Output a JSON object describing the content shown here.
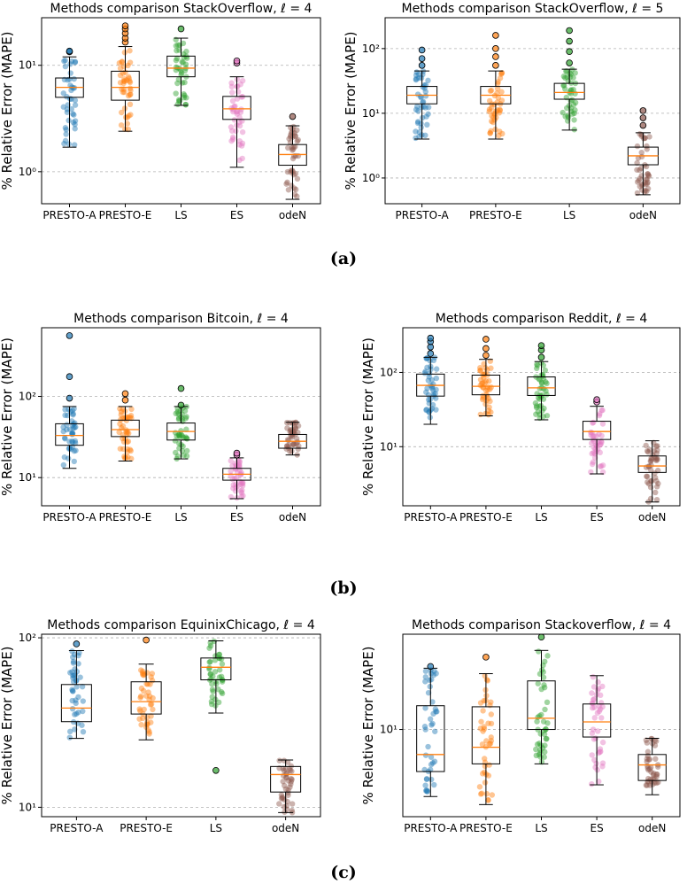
{
  "captions": [
    "(a)",
    "(b)",
    "(c)"
  ],
  "chart_data": [
    {
      "type": "box",
      "title": "Methods comparison StackOverflow, ℓ = 4",
      "ylabel": "% Relative Error (MAPE)",
      "yscale": "log",
      "ylim": [
        0.5,
        28
      ],
      "yticks": [
        {
          "v": 1,
          "label": "10⁰"
        },
        {
          "v": 10,
          "label": "10¹"
        }
      ],
      "categories": [
        "PRESTO-A",
        "PRESTO-E",
        "LS",
        "ES",
        "odeN"
      ],
      "colors": [
        "#1f77b4",
        "#ff7f0e",
        "#2ca02c",
        "#e377c2",
        "#8c564b"
      ],
      "boxes": [
        {
          "whislo": 1.7,
          "q1": 5.0,
          "med": 6.2,
          "q3": 7.6,
          "whishi": 12.0,
          "fliers": [
            13.4,
            13.6
          ]
        },
        {
          "whislo": 2.4,
          "q1": 4.7,
          "med": 6.2,
          "q3": 8.8,
          "whishi": 15.0,
          "fliers": [
            16.5,
            18.0,
            20.0,
            22.0,
            23.5
          ]
        },
        {
          "whislo": 4.2,
          "q1": 7.8,
          "med": 9.4,
          "q3": 12.2,
          "whishi": 18.0,
          "fliers": [
            22.0
          ]
        },
        {
          "whislo": 1.1,
          "q1": 3.1,
          "med": 3.9,
          "q3": 5.1,
          "whishi": 7.8,
          "fliers": [
            10.5,
            11.0
          ]
        },
        {
          "whislo": 0.55,
          "q1": 1.15,
          "med": 1.45,
          "q3": 1.8,
          "whishi": 2.7,
          "fliers": [
            3.3
          ]
        }
      ]
    },
    {
      "type": "box",
      "title": "Methods comparison StackOverflow, ℓ = 5",
      "ylabel": "% Relative Error (MAPE)",
      "yscale": "log",
      "ylim": [
        0.4,
        300
      ],
      "yticks": [
        {
          "v": 1,
          "label": "10⁰"
        },
        {
          "v": 10,
          "label": "10¹"
        },
        {
          "v": 100,
          "label": "10²"
        }
      ],
      "categories": [
        "PRESTO-A",
        "PRESTO-E",
        "LS",
        "odeN"
      ],
      "colors": [
        "#1f77b4",
        "#ff7f0e",
        "#2ca02c",
        "#8c564b"
      ],
      "boxes": [
        {
          "whislo": 4.0,
          "q1": 14.0,
          "med": 19.0,
          "q3": 26.0,
          "whishi": 45.0,
          "fliers": [
            55,
            70,
            95
          ]
        },
        {
          "whislo": 4.0,
          "q1": 14.0,
          "med": 19.0,
          "q3": 26.0,
          "whishi": 45.0,
          "fliers": [
            55,
            75,
            100,
            160
          ]
        },
        {
          "whislo": 5.5,
          "q1": 16.5,
          "med": 21.0,
          "q3": 29.0,
          "whishi": 48.0,
          "fliers": [
            60,
            90,
            130,
            190
          ]
        },
        {
          "whislo": 0.55,
          "q1": 1.6,
          "med": 2.2,
          "q3": 3.0,
          "whishi": 5.0,
          "fliers": [
            6.5,
            8.5,
            11.0
          ]
        }
      ]
    },
    {
      "type": "box",
      "title": "Methods comparison Bitcoin, ℓ = 4",
      "ylabel": "% Relative Error (MAPE)",
      "yscale": "log",
      "ylim": [
        4.5,
        700
      ],
      "yticks": [
        {
          "v": 10,
          "label": "10¹"
        },
        {
          "v": 100,
          "label": "10²"
        }
      ],
      "categories": [
        "PRESTO-A",
        "PRESTO-E",
        "LS",
        "ES",
        "odeN"
      ],
      "colors": [
        "#1f77b4",
        "#ff7f0e",
        "#2ca02c",
        "#e377c2",
        "#8c564b"
      ],
      "boxes": [
        {
          "whislo": 13.0,
          "q1": 25.0,
          "med": 33.0,
          "q3": 46.0,
          "whishi": 75.0,
          "fliers": [
            95,
            175,
            560
          ]
        },
        {
          "whislo": 16.0,
          "q1": 32.0,
          "med": 39.0,
          "q3": 51.0,
          "whishi": 75.0,
          "fliers": [
            90,
            108
          ]
        },
        {
          "whislo": 17.0,
          "q1": 29.0,
          "med": 37.0,
          "q3": 47.0,
          "whishi": 75.0,
          "fliers": [
            78,
            125
          ]
        },
        {
          "whislo": 5.5,
          "q1": 9.3,
          "med": 11.0,
          "q3": 13.0,
          "whishi": 17.5,
          "fliers": [
            19.0,
            20.0
          ]
        },
        {
          "whislo": 19.0,
          "q1": 23.0,
          "med": 28.0,
          "q3": 34.0,
          "whishi": 48.0,
          "fliers": []
        }
      ]
    },
    {
      "type": "box",
      "title": "Methods comparison Reddit, ℓ = 4",
      "ylabel": "% Relative Error (MAPE)",
      "yscale": "log",
      "ylim": [
        1.6,
        400
      ],
      "yticks": [
        {
          "v": 10,
          "label": "10¹"
        },
        {
          "v": 100,
          "label": "10²"
        }
      ],
      "categories": [
        "PRESTO-A",
        "PRESTO-E",
        "LS",
        "ES",
        "odeN"
      ],
      "colors": [
        "#1f77b4",
        "#ff7f0e",
        "#2ca02c",
        "#e377c2",
        "#8c564b"
      ],
      "boxes": [
        {
          "whislo": 20.0,
          "q1": 48.0,
          "med": 67.0,
          "q3": 95.0,
          "whishi": 160.0,
          "fliers": [
            180,
            220,
            260,
            290
          ]
        },
        {
          "whislo": 26.0,
          "q1": 50.0,
          "med": 65.0,
          "q3": 92.0,
          "whishi": 150.0,
          "fliers": [
            170,
            210,
            280
          ]
        },
        {
          "whislo": 23.0,
          "q1": 49.0,
          "med": 62.0,
          "q3": 87.0,
          "whishi": 140.0,
          "fliers": [
            160,
            200,
            230
          ]
        },
        {
          "whislo": 4.3,
          "q1": 12.5,
          "med": 16.0,
          "q3": 22.0,
          "whishi": 35.0,
          "fliers": [
            40,
            43
          ]
        },
        {
          "whislo": 1.8,
          "q1": 4.5,
          "med": 5.5,
          "q3": 7.5,
          "whishi": 12.0,
          "fliers": []
        }
      ]
    },
    {
      "type": "box",
      "title": "Methods comparison EquinixChicago, ℓ = 4",
      "ylabel": "% Relative Error (MAPE)",
      "yscale": "log",
      "ylim": [
        8.8,
        105
      ],
      "yticks": [
        {
          "v": 10,
          "label": "10¹"
        },
        {
          "v": 100,
          "label": "10²"
        }
      ],
      "categories": [
        "PRESTO-A",
        "PRESTO-E",
        "LS",
        "odeN"
      ],
      "colors": [
        "#1f77b4",
        "#ff7f0e",
        "#2ca02c",
        "#8c564b"
      ],
      "boxes": [
        {
          "whislo": 25.5,
          "q1": 32.0,
          "med": 38.5,
          "q3": 53.0,
          "whishi": 84.0,
          "fliers": [
            92
          ]
        },
        {
          "whislo": 25.0,
          "q1": 35.5,
          "med": 42.0,
          "q3": 55.0,
          "whishi": 70.0,
          "fliers": [
            97
          ]
        },
        {
          "whislo": 36.0,
          "q1": 56.5,
          "med": 67.0,
          "q3": 76.0,
          "whishi": 96.0,
          "fliers": [
            16.5
          ]
        },
        {
          "whislo": 9.3,
          "q1": 12.3,
          "med": 15.6,
          "q3": 17.4,
          "whishi": 19.0,
          "fliers": []
        }
      ]
    },
    {
      "type": "box",
      "title": "Methods comparison Stackoverflow, ℓ = 4",
      "ylabel": "% Relative Error (MAPE)",
      "yscale": "log",
      "ylim": [
        2.0,
        58
      ],
      "yticks": [
        {
          "v": 10,
          "label": "10¹"
        }
      ],
      "categories": [
        "PRESTO-A",
        "PRESTO-E",
        "LS",
        "ES",
        "odeN"
      ],
      "colors": [
        "#1f77b4",
        "#ff7f0e",
        "#2ca02c",
        "#e377c2",
        "#8c564b"
      ],
      "boxes": [
        {
          "whislo": 2.9,
          "q1": 4.6,
          "med": 6.3,
          "q3": 15.5,
          "whishi": 31.0,
          "fliers": [
            32
          ]
        },
        {
          "whislo": 2.5,
          "q1": 5.3,
          "med": 7.2,
          "q3": 15.2,
          "whishi": 28.0,
          "fliers": [
            38
          ]
        },
        {
          "whislo": 5.3,
          "q1": 10.0,
          "med": 12.3,
          "q3": 24.5,
          "whishi": 43.0,
          "fliers": [
            55
          ]
        },
        {
          "whislo": 3.6,
          "q1": 8.7,
          "med": 11.5,
          "q3": 16.0,
          "whishi": 27.0,
          "fliers": []
        },
        {
          "whislo": 3.0,
          "q1": 3.9,
          "med": 5.2,
          "q3": 6.3,
          "whishi": 8.5,
          "fliers": []
        }
      ]
    }
  ]
}
